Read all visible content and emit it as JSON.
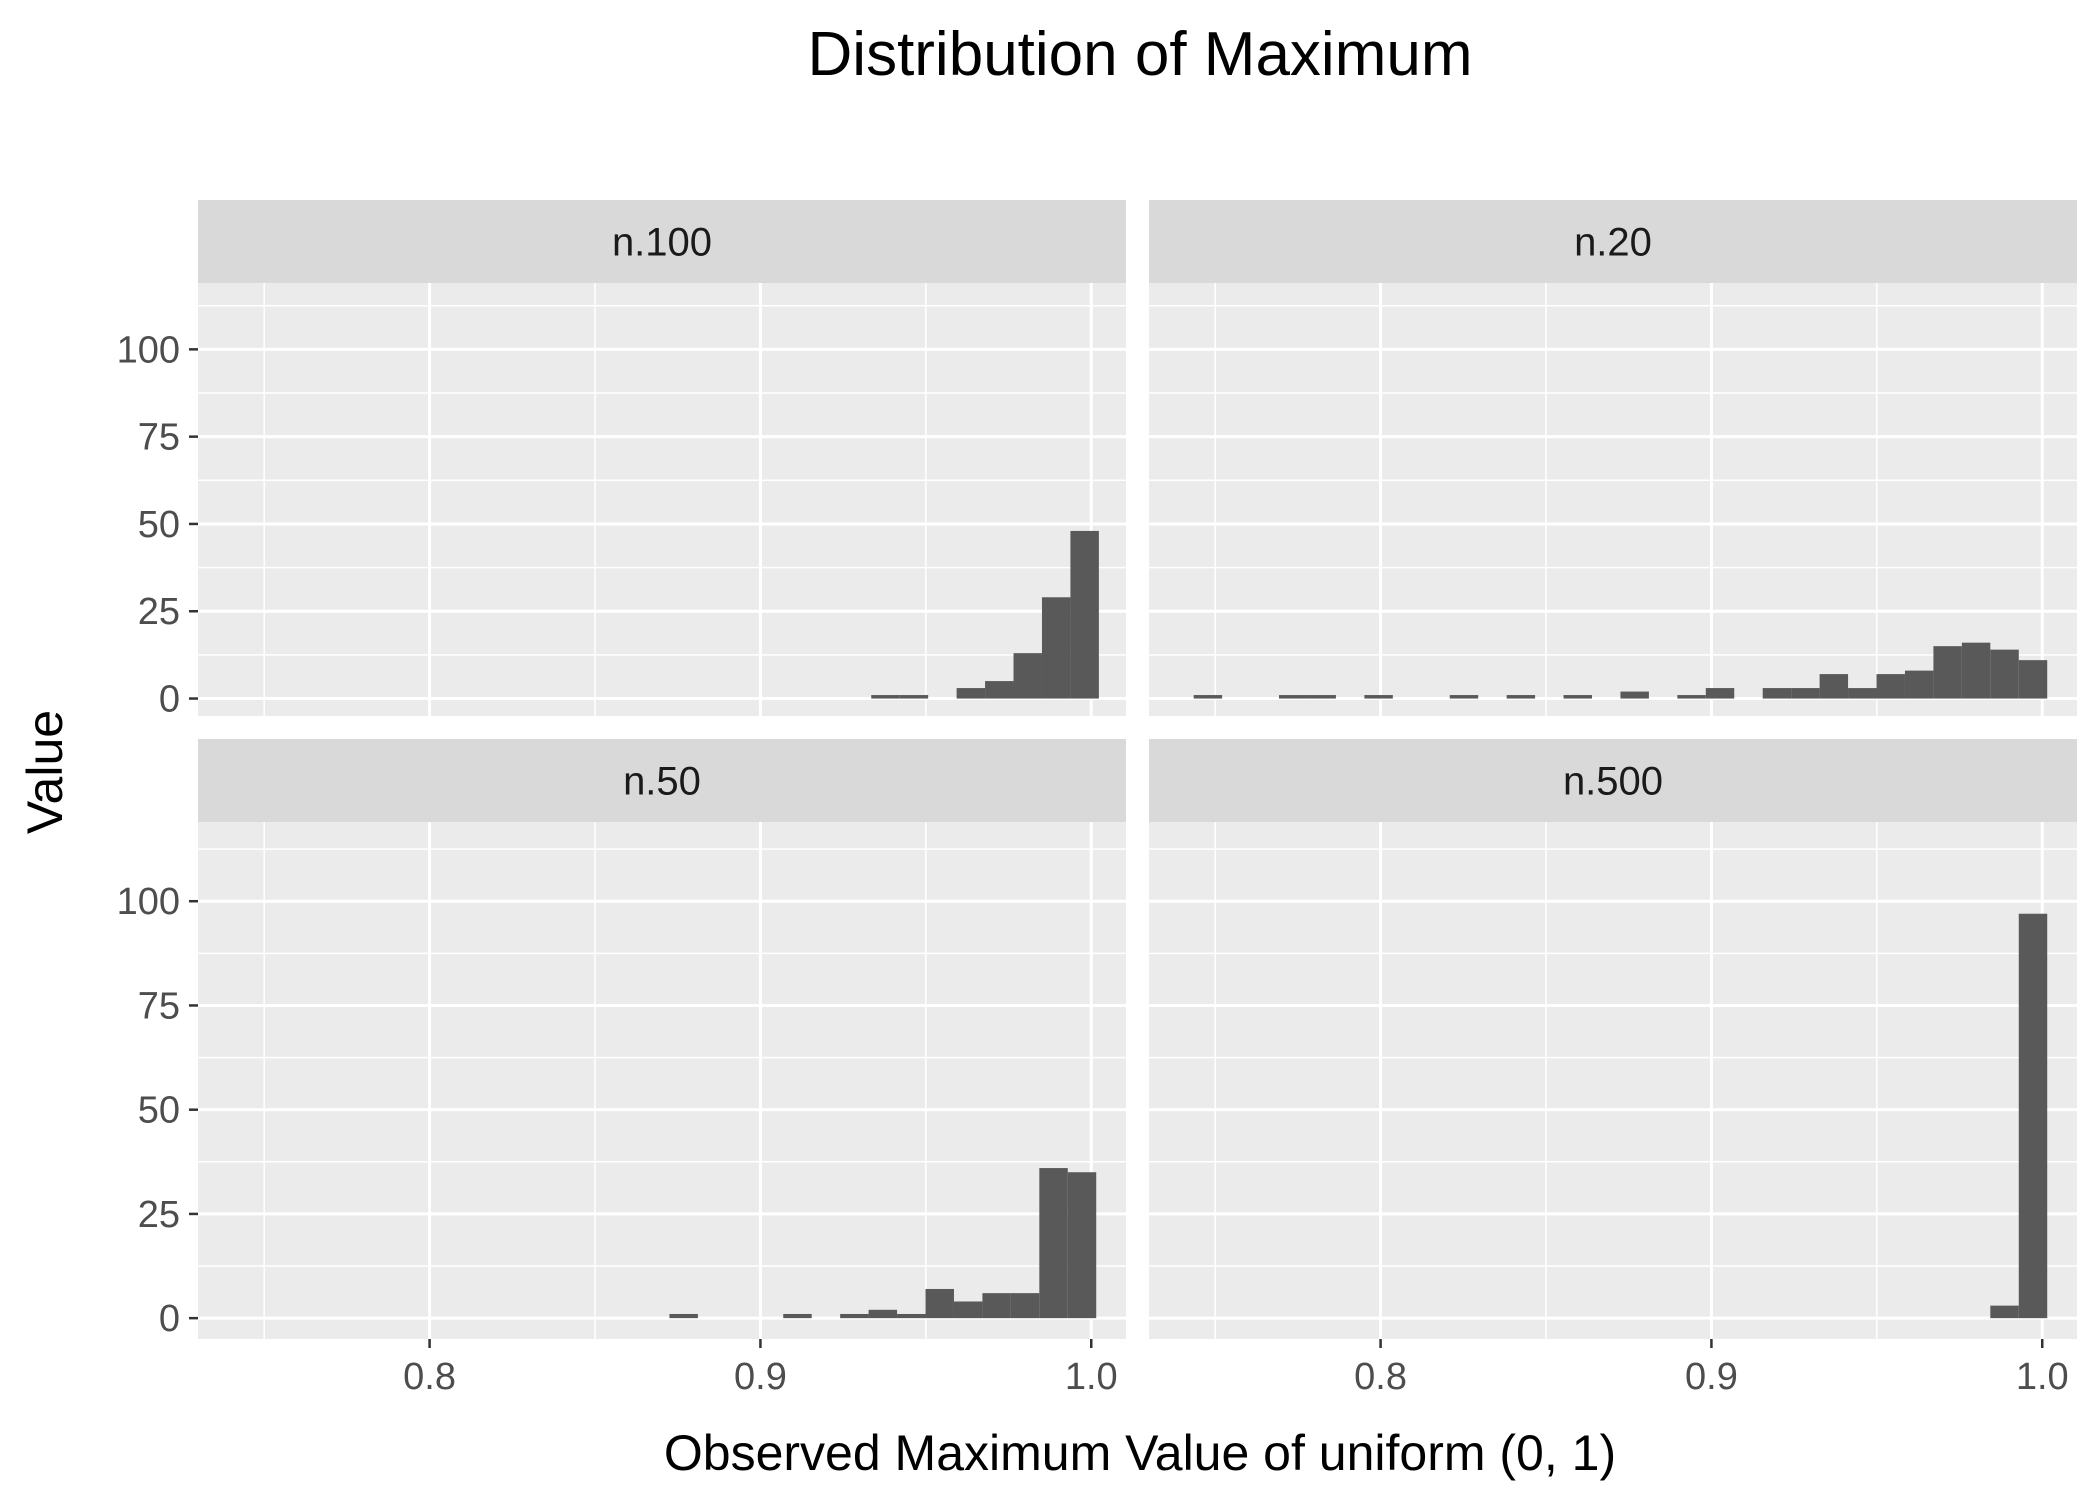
{
  "chart_data": {
    "type": "bar",
    "title": "Distribution of Maximum",
    "xlabel": "Observed Maximum Value of uniform (0, 1)",
    "ylabel": "Value",
    "facet_layout": "2x2",
    "shared_x_axis": true,
    "shared_y_axis": true,
    "xlim": [
      0.73,
      1.0105
    ],
    "ylim": [
      -5,
      119
    ],
    "x_ticks": [
      0.8,
      0.9,
      1.0
    ],
    "x_tick_labels": [
      "0.8",
      "0.9",
      "1.0"
    ],
    "y_ticks": [
      0,
      25,
      50,
      75,
      100
    ],
    "y_tick_labels": [
      "0",
      "25",
      "50",
      "75",
      "100"
    ],
    "grid": true,
    "bar_color": "#595959",
    "panel_background": "#ebebeb",
    "strip_background": "#d9d9d9",
    "panels": [
      {
        "label": "n.100",
        "bins": [
          {
            "x0": 0.9335,
            "x1": 0.9421,
            "count": 1
          },
          {
            "x0": 0.9421,
            "x1": 0.9507,
            "count": 1
          },
          {
            "x0": 0.9593,
            "x1": 0.9679,
            "count": 3
          },
          {
            "x0": 0.9679,
            "x1": 0.9765,
            "count": 5
          },
          {
            "x0": 0.9765,
            "x1": 0.9851,
            "count": 13
          },
          {
            "x0": 0.9851,
            "x1": 0.9937,
            "count": 29
          },
          {
            "x0": 0.9937,
            "x1": 1.0023,
            "count": 48
          }
        ]
      },
      {
        "label": "n.20",
        "bins": [
          {
            "x0": 0.7435,
            "x1": 0.7521,
            "count": 1
          },
          {
            "x0": 0.7693,
            "x1": 0.7779,
            "count": 1
          },
          {
            "x0": 0.7779,
            "x1": 0.7865,
            "count": 1
          },
          {
            "x0": 0.7951,
            "x1": 0.8037,
            "count": 1
          },
          {
            "x0": 0.8209,
            "x1": 0.8295,
            "count": 1
          },
          {
            "x0": 0.8381,
            "x1": 0.8467,
            "count": 1
          },
          {
            "x0": 0.8553,
            "x1": 0.8639,
            "count": 1
          },
          {
            "x0": 0.8725,
            "x1": 0.8811,
            "count": 2
          },
          {
            "x0": 0.8897,
            "x1": 0.8983,
            "count": 1
          },
          {
            "x0": 0.8983,
            "x1": 0.9069,
            "count": 3
          },
          {
            "x0": 0.9155,
            "x1": 0.9241,
            "count": 3
          },
          {
            "x0": 0.9241,
            "x1": 0.9327,
            "count": 3
          },
          {
            "x0": 0.9327,
            "x1": 0.9413,
            "count": 7
          },
          {
            "x0": 0.9413,
            "x1": 0.9499,
            "count": 3
          },
          {
            "x0": 0.9499,
            "x1": 0.9585,
            "count": 7
          },
          {
            "x0": 0.9585,
            "x1": 0.9671,
            "count": 8
          },
          {
            "x0": 0.9671,
            "x1": 0.9757,
            "count": 15
          },
          {
            "x0": 0.9757,
            "x1": 0.9843,
            "count": 16
          },
          {
            "x0": 0.9843,
            "x1": 0.9929,
            "count": 14
          },
          {
            "x0": 0.9929,
            "x1": 1.0015,
            "count": 11
          }
        ]
      },
      {
        "label": "n.50",
        "bins": [
          {
            "x0": 0.8725,
            "x1": 0.8811,
            "count": 1
          },
          {
            "x0": 0.9069,
            "x1": 0.9155,
            "count": 1
          },
          {
            "x0": 0.9241,
            "x1": 0.9327,
            "count": 1
          },
          {
            "x0": 0.9327,
            "x1": 0.9413,
            "count": 2
          },
          {
            "x0": 0.9413,
            "x1": 0.9499,
            "count": 1
          },
          {
            "x0": 0.9499,
            "x1": 0.9585,
            "count": 7
          },
          {
            "x0": 0.9585,
            "x1": 0.9671,
            "count": 4
          },
          {
            "x0": 0.9671,
            "x1": 0.9757,
            "count": 6
          },
          {
            "x0": 0.9757,
            "x1": 0.9843,
            "count": 6
          },
          {
            "x0": 0.9843,
            "x1": 0.9929,
            "count": 36
          },
          {
            "x0": 0.9929,
            "x1": 1.0015,
            "count": 35
          }
        ]
      },
      {
        "label": "n.500",
        "bins": [
          {
            "x0": 0.9843,
            "x1": 0.9929,
            "count": 3
          },
          {
            "x0": 0.9929,
            "x1": 1.0015,
            "count": 97
          }
        ]
      }
    ]
  }
}
